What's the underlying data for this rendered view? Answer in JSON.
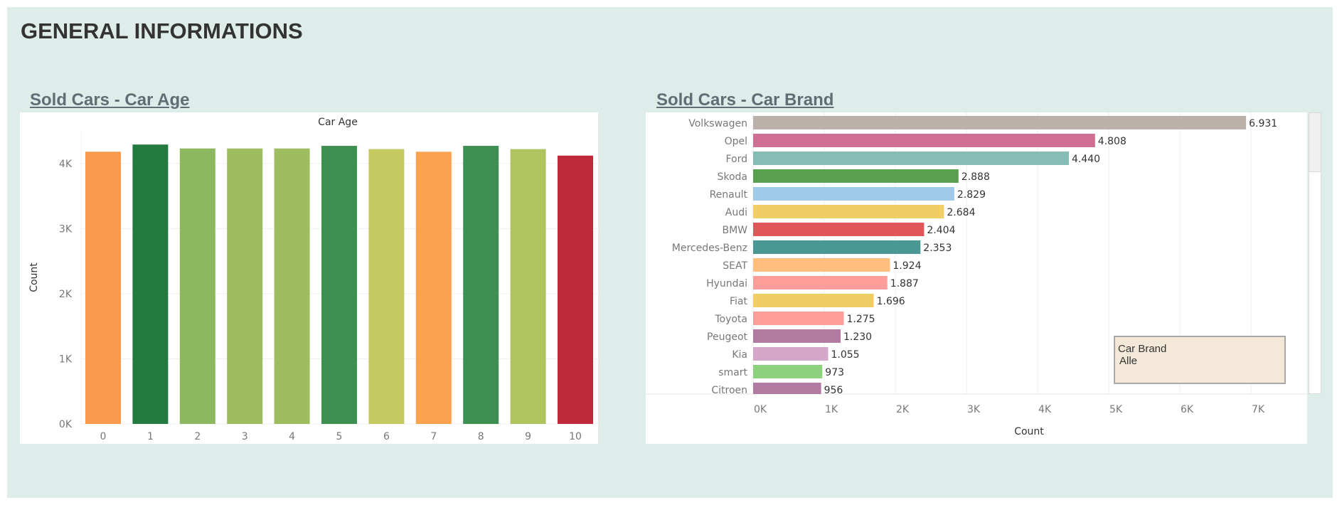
{
  "page": {
    "title": "GENERAL INFORMATIONS"
  },
  "colors": {
    "background": "#dfedea",
    "title": "#333333",
    "panel_title": "#5f6d75"
  },
  "legend": {
    "title": "Car Brand",
    "value": "Alle"
  },
  "chart_data": [
    {
      "type": "bar",
      "panel_title": "Sold Cars - Car Age",
      "title": "Car Age",
      "xlabel": "",
      "ylabel": "Count",
      "categories": [
        "0",
        "1",
        "2",
        "3",
        "4",
        "5",
        "6",
        "7",
        "8",
        "9",
        "10"
      ],
      "values": [
        4180,
        4290,
        4230,
        4230,
        4230,
        4270,
        4220,
        4180,
        4270,
        4220,
        4120
      ],
      "colors": [
        "#fb9a4d",
        "#227a3f",
        "#8cb960",
        "#9dbd5f",
        "#9dbd5f",
        "#3e8f52",
        "#c3c860",
        "#fba24e",
        "#3e8f52",
        "#afc45e",
        "#c0283b"
      ],
      "ylim": [
        0,
        4500
      ],
      "yticks": [
        "0K",
        "1K",
        "2K",
        "3K",
        "4K"
      ],
      "grid": true
    },
    {
      "type": "bar",
      "orientation": "horizontal",
      "panel_title": "Sold Cars - Car Brand",
      "xlabel": "Count",
      "ylabel": "",
      "categories": [
        "Volkswagen",
        "Opel",
        "Ford",
        "Skoda",
        "Renault",
        "Audi",
        "BMW",
        "Mercedes-Benz",
        "SEAT",
        "Hyundai",
        "Fiat",
        "Toyota",
        "Peugeot",
        "Kia",
        "smart",
        "Citroen"
      ],
      "values": [
        6931,
        4808,
        4440,
        2888,
        2829,
        2684,
        2404,
        2353,
        1924,
        1887,
        1696,
        1275,
        1230,
        1055,
        973,
        956
      ],
      "value_labels": [
        "6.931",
        "4.808",
        "4.440",
        "2.888",
        "2.829",
        "2.684",
        "2.404",
        "2.353",
        "1.924",
        "1.887",
        "1.696",
        "1.275",
        "1.230",
        "1.055",
        "973",
        "956"
      ],
      "colors": [
        "#bcb0ab",
        "#d06f93",
        "#86bcb6",
        "#59a04e",
        "#a0cbe8",
        "#f1ce63",
        "#e15759",
        "#499894",
        "#ffbe7d",
        "#ff9d9a",
        "#f1ce63",
        "#ff9d9a",
        "#b07aa1",
        "#d4a6c8",
        "#8cd17d",
        "#b07aa1"
      ],
      "xlim": [
        0,
        7700
      ],
      "xticks": [
        "0K",
        "1K",
        "2K",
        "3K",
        "4K",
        "5K",
        "6K",
        "7K"
      ],
      "grid": true
    }
  ]
}
